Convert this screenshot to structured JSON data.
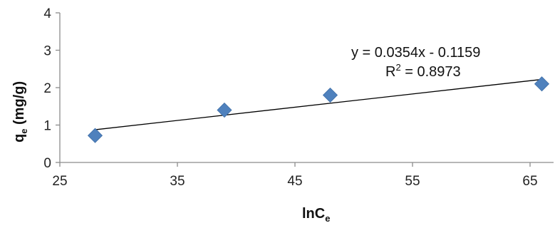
{
  "chart_data": {
    "type": "scatter",
    "x": [
      28,
      39,
      48,
      66
    ],
    "y": [
      0.72,
      1.4,
      1.8,
      2.1
    ],
    "xlim": [
      25,
      67
    ],
    "ylim": [
      0,
      4
    ],
    "xticks": [
      25,
      35,
      45,
      55,
      65
    ],
    "yticks": [
      0,
      1,
      2,
      3,
      4
    ],
    "xlabel_main": "lnC",
    "xlabel_sub": "e",
    "ylabel_main": "q",
    "ylabel_sub": "e",
    "ylabel_rest": " (mg/g)",
    "trendline": {
      "type": "linear",
      "slope": 0.0354,
      "intercept": -0.1159,
      "x_range": [
        28,
        66
      ],
      "equation": "y = 0.0354x - 0.1159",
      "r2_prefix": "R",
      "r2_sup": "2",
      "r2_rest": " = 0.8973"
    },
    "marker_color": "#4F81BD",
    "line_color": "#000000",
    "grid": false,
    "legend": "none"
  }
}
